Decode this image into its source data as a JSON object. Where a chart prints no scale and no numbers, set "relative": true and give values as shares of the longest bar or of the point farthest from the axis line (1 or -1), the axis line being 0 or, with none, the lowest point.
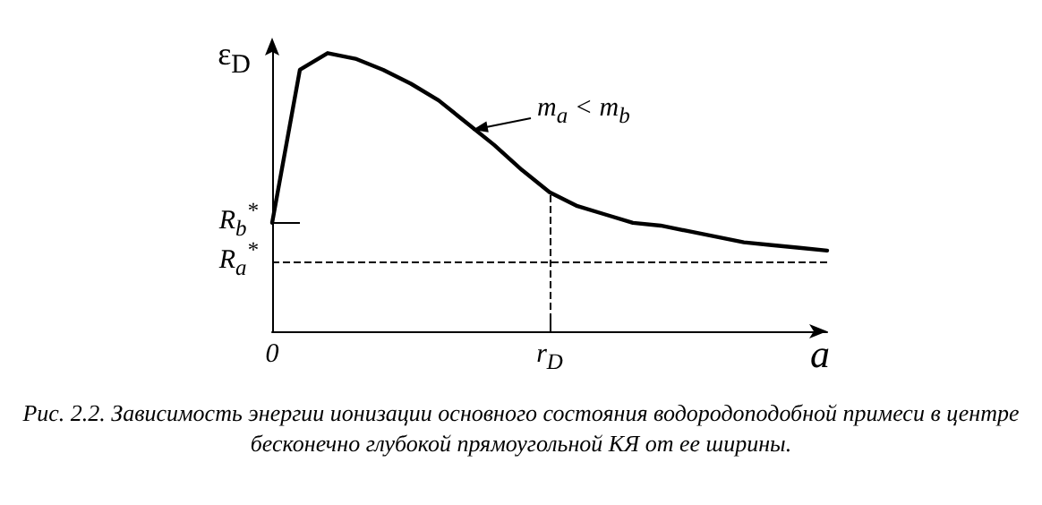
{
  "chart_data": {
    "type": "line",
    "relative": true,
    "xlabel": "a",
    "ylabel": "ε$_{D}$",
    "categories": [
      "0",
      null,
      null,
      null,
      null,
      null,
      null,
      null,
      null,
      null,
      "r$_{D}$",
      null,
      null,
      null,
      null,
      null,
      null,
      null,
      null,
      null,
      null
    ],
    "series": [
      {
        "color": "#000000",
        "values": [
          0.39,
          0.94,
          1.0,
          0.98,
          0.94,
          0.89,
          0.83,
          0.75,
          0.67,
          0.58,
          0.5,
          0.45,
          0.42,
          0.39,
          0.38,
          0.36,
          0.34,
          0.32,
          0.31,
          0.3,
          0.29
        ]
      }
    ],
    "ref_lines": [
      {
        "axis": "y",
        "value": 0.39,
        "label": "R$_{b}$$^{*}$",
        "line_style": "solid",
        "color": "#000000"
      },
      {
        "axis": "y",
        "value": 0.25,
        "label": "R$_{a}$$^{*}$",
        "line_style": "dashed",
        "color": "#000000"
      },
      {
        "axis": "x",
        "value": "r$_{D}$",
        "label": null,
        "line_style": "dashed",
        "color": "#000000"
      }
    ],
    "annotations": [
      "m$_{a}$ < m$_{b}$",
      "Рис. 2.2. Зависимость энергии ионизации основного состояния водородоподобной примеси в центре бесконечно глубокой прямоугольной КЯ от ее ширины."
    ],
    "grid": false,
    "legend": false,
    "marker": "none",
    "line_style": "solid"
  }
}
